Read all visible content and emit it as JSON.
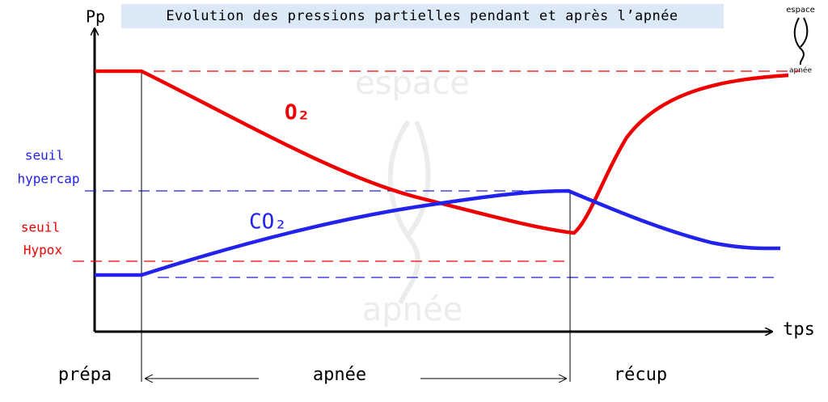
{
  "header": {
    "title": "Evolution des pressions partielles pendant et après l’apnée"
  },
  "axes": {
    "y_label": "Pp",
    "x_label": "tps"
  },
  "curves": {
    "o2_label": "O₂",
    "co2_label": "CO₂"
  },
  "thresholds": {
    "hypercap": [
      "seuil",
      "hypercap"
    ],
    "hypox": [
      "seuil",
      "Hypox"
    ]
  },
  "phases": [
    "prépa",
    "apnée",
    "récup"
  ],
  "logo": [
    "espace",
    "apnée"
  ],
  "watermark": [
    "espace",
    "apnée"
  ]
}
